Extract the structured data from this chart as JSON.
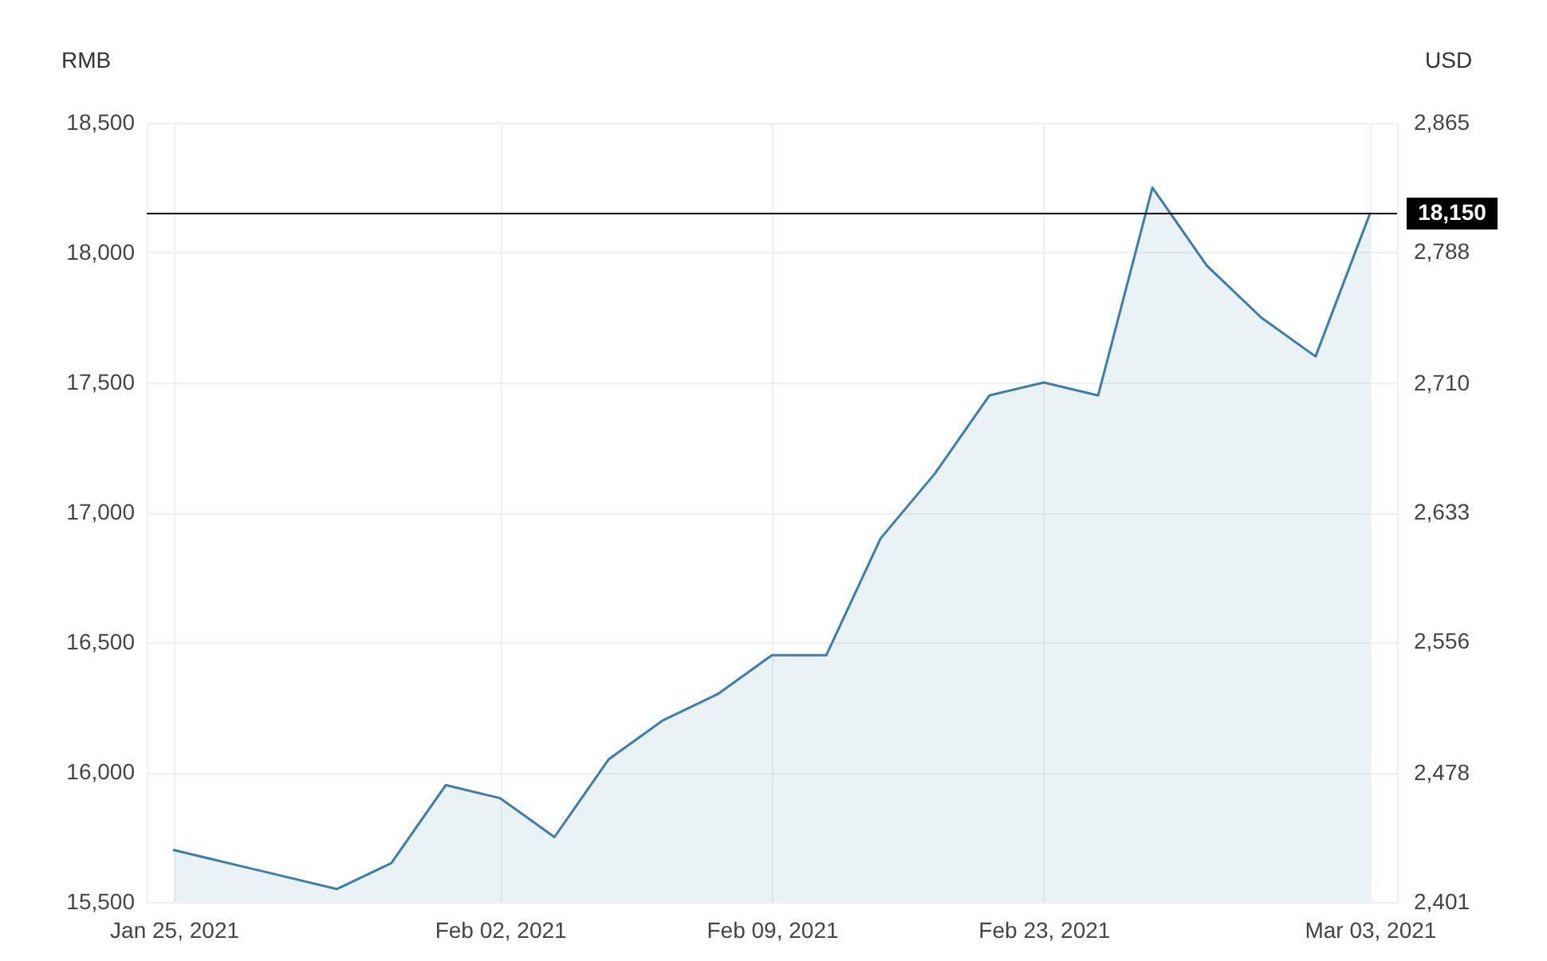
{
  "chart_data": {
    "type": "area",
    "ylabel": "RMB",
    "y2label": "USD",
    "categories": [
      "Jan 25, 2021",
      null,
      null,
      null,
      null,
      null,
      "Feb 02, 2021",
      null,
      null,
      null,
      null,
      "Feb 09, 2021",
      null,
      null,
      null,
      null,
      "Feb 23, 2021",
      null,
      null,
      null,
      null,
      null,
      "Mar 03, 2021"
    ],
    "series": [
      {
        "color": "#3a7eab",
        "values": [
          15700,
          15650,
          15600,
          15550,
          15650,
          15950,
          15900,
          15750,
          16050,
          16200,
          16300,
          16450,
          16450,
          16900,
          17150,
          17450,
          17500,
          17450,
          18250,
          17950,
          17750,
          17600,
          18150
        ]
      }
    ],
    "ylim": [
      15500,
      18500
    ],
    "yticks": [
      {
        "value": 15500,
        "label": "15,500"
      },
      {
        "value": 16000,
        "label": "16,000"
      },
      {
        "value": 16500,
        "label": "16,500"
      },
      {
        "value": 17000,
        "label": "17,000"
      },
      {
        "value": 17500,
        "label": "17,500"
      },
      {
        "value": 18000,
        "label": "18,000"
      },
      {
        "value": 18500,
        "label": "18,500"
      }
    ],
    "y2lim": [
      2401,
      2865
    ],
    "y2ticks": [
      {
        "value": 2401,
        "label": "2,401"
      },
      {
        "value": 2478,
        "label": "2,478"
      },
      {
        "value": 2556,
        "label": "2,556"
      },
      {
        "value": 2633,
        "label": "2,633"
      },
      {
        "value": 2710,
        "label": "2,710"
      },
      {
        "value": 2788,
        "label": "2,788"
      },
      {
        "value": 2865,
        "label": "2,865"
      }
    ],
    "ref_lines": [
      {
        "axis": "y",
        "value": 18150,
        "label": "18,150",
        "color": "#000000"
      }
    ],
    "grid": true
  }
}
